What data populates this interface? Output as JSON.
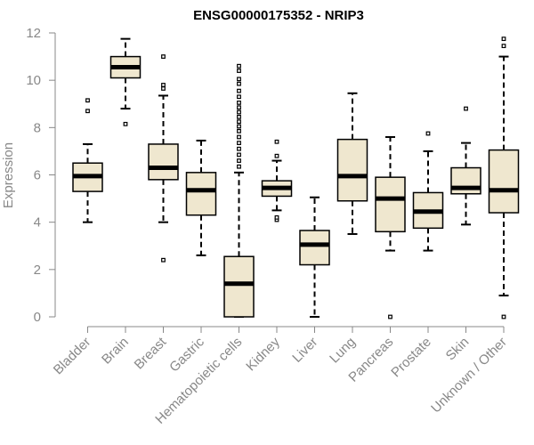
{
  "chart_data": {
    "type": "boxplot",
    "title": "ENSG00000175352 - NRIP3",
    "xlabel": "",
    "ylabel": "Expression",
    "ylim": [
      0,
      12
    ],
    "yticks": [
      0,
      2,
      4,
      6,
      8,
      10,
      12
    ],
    "colors": {
      "box_fill": "#efe7cf",
      "box_stroke": "#000000",
      "axis": "#888888",
      "median": "#000000"
    },
    "categories": [
      "Bladder",
      "Brain",
      "Breast",
      "Gastric",
      "Hematopoietic cells",
      "Kidney",
      "Liver",
      "Lung",
      "Pancreas",
      "Prostate",
      "Skin",
      "Unknown / Other"
    ],
    "boxes": [
      {
        "name": "Bladder",
        "whisker_low": 4.0,
        "q1": 5.3,
        "median": 5.95,
        "q3": 6.5,
        "whisker_high": 7.3,
        "outliers": [
          8.7,
          9.15
        ]
      },
      {
        "name": "Brain",
        "whisker_low": 8.8,
        "q1": 10.1,
        "median": 10.55,
        "q3": 11.0,
        "whisker_high": 11.75,
        "outliers": [
          8.15
        ]
      },
      {
        "name": "Breast",
        "whisker_low": 4.0,
        "q1": 5.8,
        "median": 6.3,
        "q3": 7.3,
        "whisker_high": 9.35,
        "outliers": [
          2.4,
          9.65,
          9.8,
          11.0
        ]
      },
      {
        "name": "Gastric",
        "whisker_low": 2.6,
        "q1": 4.3,
        "median": 5.35,
        "q3": 6.1,
        "whisker_high": 7.45,
        "outliers": []
      },
      {
        "name": "Hematopoietic cells",
        "whisker_low": 0.0,
        "q1": 0.0,
        "median": 1.4,
        "q3": 2.55,
        "whisker_high": 6.1,
        "outliers": [
          6.35,
          6.6,
          6.85,
          7.1,
          7.35,
          7.6,
          7.85,
          8.05,
          8.25,
          8.45,
          8.65,
          8.85,
          9.05,
          9.3,
          9.55,
          9.85,
          10.05,
          10.4,
          10.6
        ]
      },
      {
        "name": "Kidney",
        "whisker_low": 4.5,
        "q1": 5.1,
        "median": 5.45,
        "q3": 5.75,
        "whisker_high": 6.6,
        "outliers": [
          4.1,
          4.2,
          6.8,
          7.4
        ]
      },
      {
        "name": "Liver",
        "whisker_low": 0.0,
        "q1": 2.2,
        "median": 3.05,
        "q3": 3.65,
        "whisker_high": 5.05,
        "outliers": []
      },
      {
        "name": "Lung",
        "whisker_low": 3.5,
        "q1": 4.9,
        "median": 5.95,
        "q3": 7.5,
        "whisker_high": 9.45,
        "outliers": []
      },
      {
        "name": "Pancreas",
        "whisker_low": 2.8,
        "q1": 3.6,
        "median": 5.0,
        "q3": 5.9,
        "whisker_high": 7.6,
        "outliers": [
          0.0
        ]
      },
      {
        "name": "Prostate",
        "whisker_low": 2.8,
        "q1": 3.75,
        "median": 4.45,
        "q3": 5.25,
        "whisker_high": 7.0,
        "outliers": [
          7.75
        ]
      },
      {
        "name": "Skin",
        "whisker_low": 3.9,
        "q1": 5.2,
        "median": 5.45,
        "q3": 6.3,
        "whisker_high": 7.35,
        "outliers": [
          8.8
        ]
      },
      {
        "name": "Unknown / Other",
        "whisker_low": 0.9,
        "q1": 4.4,
        "median": 5.35,
        "q3": 7.05,
        "whisker_high": 11.0,
        "outliers": [
          0.0,
          11.45,
          11.75
        ]
      }
    ]
  }
}
